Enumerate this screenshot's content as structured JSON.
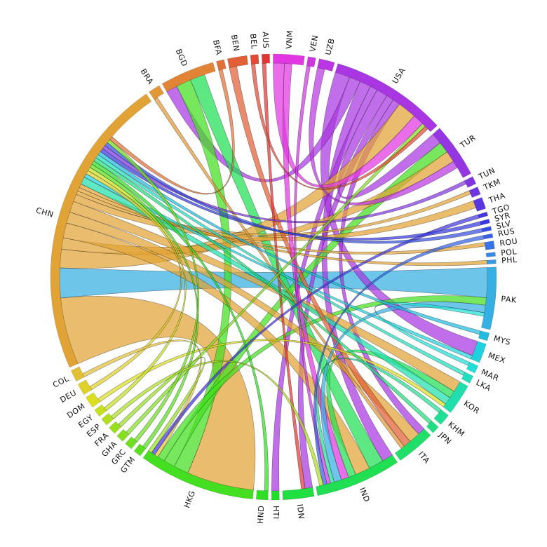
{
  "chart_data": {
    "type": "chord",
    "nodes": [
      {
        "name": "AUS",
        "value": 2,
        "color": "hsl(0,75%,55%)"
      },
      {
        "name": "BEL",
        "value": 2,
        "color": "hsl(7,75%,55%)"
      },
      {
        "name": "BEN",
        "value": 5,
        "color": "hsl(14,75%,55%)"
      },
      {
        "name": "BFA",
        "value": 2,
        "color": "hsl(20,75%,55%)"
      },
      {
        "name": "BGD",
        "value": 14,
        "color": "hsl(27,75%,55%)"
      },
      {
        "name": "BRA",
        "value": 3,
        "color": "hsl(34,75%,55%)"
      },
      {
        "name": "CHN",
        "value": 78,
        "color": "hsl(38,75%,55%)"
      },
      {
        "name": "COL",
        "value": 3,
        "color": "hsl(48,75%,55%)"
      },
      {
        "name": "DEU",
        "value": 3,
        "color": "hsl(55,75%,52%)"
      },
      {
        "name": "DOM",
        "value": 3,
        "color": "hsl(61,75%,50%)"
      },
      {
        "name": "EGY",
        "value": 2,
        "color": "hsl(68,75%,50%)"
      },
      {
        "name": "ESP",
        "value": 2,
        "color": "hsl(75,75%,50%)"
      },
      {
        "name": "FRA",
        "value": 2,
        "color": "hsl(82,75%,50%)"
      },
      {
        "name": "GHA",
        "value": 2,
        "color": "hsl(89,75%,50%)"
      },
      {
        "name": "GRC",
        "value": 2,
        "color": "hsl(95,75%,50%)"
      },
      {
        "name": "GTM",
        "value": 2,
        "color": "hsl(102,75%,50%)"
      },
      {
        "name": "HKG",
        "value": 30,
        "color": "hsl(109,75%,50%)"
      },
      {
        "name": "HND",
        "value": 3,
        "color": "hsl(116,75%,50%)"
      },
      {
        "name": "HTI",
        "value": 2,
        "color": "hsl(123,75%,50%)"
      },
      {
        "name": "IDN",
        "value": 8,
        "color": "hsl(130,75%,50%)"
      },
      {
        "name": "IND",
        "value": 22,
        "color": "hsl(136,75%,50%)"
      },
      {
        "name": "ITA",
        "value": 10,
        "color": "hsl(143,75%,50%)"
      },
      {
        "name": "JPN",
        "value": 2,
        "color": "hsl(150,75%,50%)"
      },
      {
        "name": "KHM",
        "value": 3,
        "color": "hsl(157,75%,50%)"
      },
      {
        "name": "KOR",
        "value": 8,
        "color": "hsl(164,75%,50%)"
      },
      {
        "name": "LKA",
        "value": 2,
        "color": "hsl(170,75%,50%)"
      },
      {
        "name": "MAR",
        "value": 2,
        "color": "hsl(177,75%,50%)"
      },
      {
        "name": "MEX",
        "value": 5,
        "color": "hsl(184,75%,50%)"
      },
      {
        "name": "MYS",
        "value": 2,
        "color": "hsl(191,75%,50%)"
      },
      {
        "name": "PAK",
        "value": 16,
        "color": "hsl(198,75%,55%)"
      },
      {
        "name": "PHL",
        "value": 1,
        "color": "hsl(205,75%,55%)"
      },
      {
        "name": "POL",
        "value": 1,
        "color": "hsl(211,75%,55%)"
      },
      {
        "name": "ROU",
        "value": 2,
        "color": "hsl(218,75%,55%)"
      },
      {
        "name": "RUS",
        "value": 1,
        "color": "hsl(225,75%,55%)"
      },
      {
        "name": "SLV",
        "value": 1,
        "color": "hsl(232,75%,55%)"
      },
      {
        "name": "SYR",
        "value": 1,
        "color": "hsl(239,75%,55%)"
      },
      {
        "name": "TGO",
        "value": 1,
        "color": "hsl(245,75%,55%)"
      },
      {
        "name": "THA",
        "value": 3,
        "color": "hsl(252,75%,55%)"
      },
      {
        "name": "TKM",
        "value": 2,
        "color": "hsl(259,75%,55%)"
      },
      {
        "name": "TUN",
        "value": 2,
        "color": "hsl(266,75%,55%)"
      },
      {
        "name": "TUR",
        "value": 14,
        "color": "hsl(273,75%,55%)"
      },
      {
        "name": "USA",
        "value": 30,
        "color": "hsl(280,75%,55%)"
      },
      {
        "name": "UZB",
        "value": 4,
        "color": "hsl(286,75%,55%)"
      },
      {
        "name": "VEN",
        "value": 2,
        "color": "hsl(293,75%,55%)"
      },
      {
        "name": "VNM",
        "value": 8,
        "color": "hsl(300,75%,55%)"
      }
    ],
    "chords": [
      {
        "source": "CHN",
        "target": "HKG",
        "value": 18
      },
      {
        "source": "PAK",
        "target": "CHN",
        "value": 8
      },
      {
        "source": "USA",
        "target": "MEX",
        "value": 4
      },
      {
        "source": "USA",
        "target": "BGD",
        "value": 3
      },
      {
        "source": "USA",
        "target": "IND",
        "value": 3
      },
      {
        "source": "USA",
        "target": "HTI",
        "value": 2
      },
      {
        "source": "USA",
        "target": "TUR",
        "value": 3
      },
      {
        "source": "USA",
        "target": "IDN",
        "value": 2
      },
      {
        "source": "USA",
        "target": "ITA",
        "value": 2
      },
      {
        "source": "HKG",
        "target": "BGD",
        "value": 4
      },
      {
        "source": "IND",
        "target": "BGD",
        "value": 4
      },
      {
        "source": "HKG",
        "target": "TUR",
        "value": 3
      },
      {
        "source": "HKG",
        "target": "PAK",
        "value": 2
      },
      {
        "source": "CHN",
        "target": "USA",
        "value": 5
      },
      {
        "source": "CHN",
        "target": "TUR",
        "value": 3
      },
      {
        "source": "CHN",
        "target": "IND",
        "value": 4
      },
      {
        "source": "CHN",
        "target": "ITA",
        "value": 3
      },
      {
        "source": "CHN",
        "target": "KOR",
        "value": 3
      },
      {
        "source": "CHN",
        "target": "THA",
        "value": 2
      },
      {
        "source": "CHN",
        "target": "TKM",
        "value": 1
      },
      {
        "source": "CHN",
        "target": "ROU",
        "value": 1
      },
      {
        "source": "CHN",
        "target": "PHL",
        "value": 1
      },
      {
        "source": "IND",
        "target": "KOR",
        "value": 2
      },
      {
        "source": "KOR",
        "target": "CHN",
        "value": 2
      },
      {
        "source": "MEX",
        "target": "CHN",
        "value": 1
      },
      {
        "source": "BEN",
        "target": "ITA",
        "value": 2
      },
      {
        "source": "AUS",
        "target": "IDN",
        "value": 1
      },
      {
        "source": "VNM",
        "target": "USA",
        "value": 3
      },
      {
        "source": "VNM",
        "target": "IND",
        "value": 2
      },
      {
        "source": "BRA",
        "target": "ITA",
        "value": 1
      },
      {
        "source": "PAK",
        "target": "IND",
        "value": 2
      },
      {
        "source": "DEU",
        "target": "CHN",
        "value": 1
      },
      {
        "source": "DOM",
        "target": "KOR",
        "value": 1
      },
      {
        "source": "EGY",
        "target": "CHN",
        "value": 1
      },
      {
        "source": "GTM",
        "target": "CHN",
        "value": 1
      },
      {
        "source": "HND",
        "target": "CHN",
        "value": 1
      },
      {
        "source": "JPN",
        "target": "CHN",
        "value": 1
      },
      {
        "source": "KHM",
        "target": "IND",
        "value": 1
      },
      {
        "source": "LKA",
        "target": "CHN",
        "value": 1
      },
      {
        "source": "MAR",
        "target": "PAK",
        "value": 1
      },
      {
        "source": "MYS",
        "target": "CHN",
        "value": 1
      },
      {
        "source": "UZB",
        "target": "TUR",
        "value": 2
      },
      {
        "source": "VEN",
        "target": "IND",
        "value": 1
      },
      {
        "source": "COL",
        "target": "HKG",
        "value": 1
      },
      {
        "source": "TGO",
        "target": "HKG",
        "value": 1
      },
      {
        "source": "SYR",
        "target": "CHN",
        "value": 1
      },
      {
        "source": "TUN",
        "target": "CHN",
        "value": 1
      },
      {
        "source": "RUS",
        "target": "IND",
        "value": 1
      },
      {
        "source": "SLV",
        "target": "CHN",
        "value": 1
      },
      {
        "source": "GHA",
        "target": "USA",
        "value": 1
      },
      {
        "source": "GRC",
        "target": "CHN",
        "value": 1
      },
      {
        "source": "ESP",
        "target": "IND",
        "value": 1
      },
      {
        "source": "FRA",
        "target": "HKG",
        "value": 1
      },
      {
        "source": "BEL",
        "target": "USA",
        "value": 1
      },
      {
        "source": "BFA",
        "target": "CHN",
        "value": 1
      }
    ]
  }
}
